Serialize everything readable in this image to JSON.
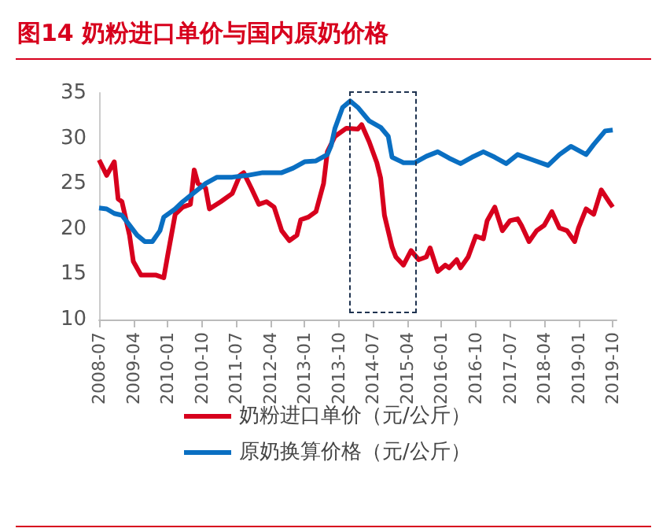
{
  "chart_data": {
    "type": "line",
    "title": "图14  奶粉进口单价与国内原奶价格",
    "xlim": [
      "2008-07",
      "2019-11"
    ],
    "xticks": [
      "2008-07",
      "2009-04",
      "2010-01",
      "2010-10",
      "2011-07",
      "2012-04",
      "2013-01",
      "2013-10",
      "2014-07",
      "2015-04",
      "2016-01",
      "2016-10",
      "2017-07",
      "2018-04",
      "2019-01",
      "2019-10"
    ],
    "ylim": [
      10,
      35
    ],
    "yticks": [
      10,
      15,
      20,
      25,
      30,
      35
    ],
    "legend": "bottom",
    "marker": "none",
    "series": [
      {
        "name": "奶粉进口单价（元/公斤）",
        "color": "#d7001d",
        "x": [
          "2008-07",
          "2008-09",
          "2008-11",
          "2008-12",
          "2009-01",
          "2009-03",
          "2009-04",
          "2009-06",
          "2009-10",
          "2009-12",
          "2010-01",
          "2010-03",
          "2010-05",
          "2010-07",
          "2010-08",
          "2010-09",
          "2010-11",
          "2010-12",
          "2011-03",
          "2011-06",
          "2011-08",
          "2011-09",
          "2011-11",
          "2012-01",
          "2012-03",
          "2012-05",
          "2012-07",
          "2012-09",
          "2012-11",
          "2012-12",
          "2013-02",
          "2013-04",
          "2013-06",
          "2013-07",
          "2013-09",
          "2013-12",
          "2014-03",
          "2014-04",
          "2014-06",
          "2014-08",
          "2014-09",
          "2014-10",
          "2014-12",
          "2015-01",
          "2015-03",
          "2015-05",
          "2015-07",
          "2015-09",
          "2015-10",
          "2015-12",
          "2016-02",
          "2016-03",
          "2016-05",
          "2016-06",
          "2016-08",
          "2016-10",
          "2016-12",
          "2017-01",
          "2017-03",
          "2017-05",
          "2017-07",
          "2017-09",
          "2017-10",
          "2017-12",
          "2018-02",
          "2018-04",
          "2018-06",
          "2018-08",
          "2018-10",
          "2018-12",
          "2019-01",
          "2019-03",
          "2019-05",
          "2019-07",
          "2019-09",
          "2019-10"
        ],
        "values": [
          27.6,
          25.9,
          27.4,
          23.3,
          23.0,
          19.3,
          16.4,
          14.9,
          14.9,
          14.6,
          17.0,
          21.6,
          22.4,
          22.7,
          26.5,
          25.0,
          24.5,
          22.2,
          23.0,
          23.9,
          25.9,
          26.2,
          24.5,
          22.7,
          23.0,
          22.4,
          19.8,
          18.7,
          19.3,
          21.0,
          21.3,
          21.9,
          25.0,
          28.5,
          30.2,
          31.1,
          31.0,
          31.5,
          29.6,
          27.3,
          25.6,
          21.5,
          18.0,
          16.9,
          16.0,
          17.6,
          16.6,
          16.9,
          17.9,
          15.3,
          16.0,
          15.7,
          16.6,
          15.7,
          16.9,
          19.2,
          18.9,
          20.9,
          22.4,
          19.8,
          20.9,
          21.1,
          20.4,
          18.6,
          19.8,
          20.4,
          21.9,
          20.1,
          19.8,
          18.6,
          20.1,
          22.2,
          21.6,
          24.3,
          23.0,
          22.4
        ]
      },
      {
        "name": "原奶换算价格（元/公斤）",
        "color": "#0a6fc2",
        "x": [
          "2008-07",
          "2008-09",
          "2008-11",
          "2009-01",
          "2009-03",
          "2009-05",
          "2009-07",
          "2009-09",
          "2009-11",
          "2009-12",
          "2010-03",
          "2010-05",
          "2010-08",
          "2010-11",
          "2011-02",
          "2011-06",
          "2011-10",
          "2012-02",
          "2012-07",
          "2012-10",
          "2013-01",
          "2013-04",
          "2013-07",
          "2013-08",
          "2013-09",
          "2013-11",
          "2014-01",
          "2014-03",
          "2014-06",
          "2014-09",
          "2014-11",
          "2014-12",
          "2015-03",
          "2015-06",
          "2015-09",
          "2015-12",
          "2016-03",
          "2016-06",
          "2016-09",
          "2016-12",
          "2017-03",
          "2017-06",
          "2017-09",
          "2018-01",
          "2018-05",
          "2018-08",
          "2018-11",
          "2019-03",
          "2019-05",
          "2019-08",
          "2019-10"
        ],
        "values": [
          22.3,
          22.2,
          21.7,
          21.5,
          20.4,
          19.3,
          18.6,
          18.6,
          19.8,
          21.3,
          22.2,
          23.0,
          24.0,
          25.0,
          25.7,
          25.7,
          25.9,
          26.2,
          26.2,
          26.7,
          27.4,
          27.5,
          28.2,
          29.2,
          31.1,
          33.4,
          34.1,
          33.4,
          31.9,
          31.2,
          30.2,
          27.9,
          27.3,
          27.3,
          28.0,
          28.5,
          27.8,
          27.2,
          27.9,
          28.5,
          27.9,
          27.2,
          28.2,
          27.6,
          27.0,
          28.2,
          29.1,
          28.2,
          29.3,
          30.8,
          30.9
        ]
      }
    ]
  }
}
